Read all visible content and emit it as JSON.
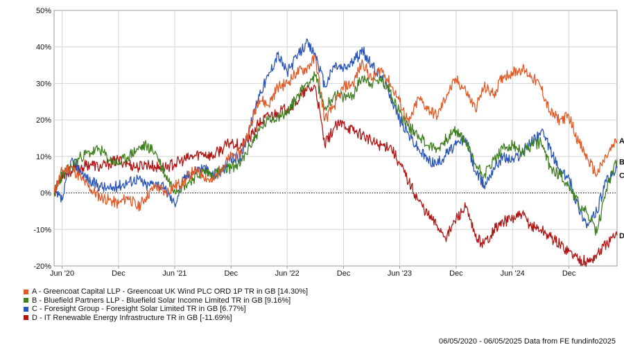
{
  "chart_data": {
    "type": "line",
    "x_ticks": [
      "Jun '20",
      "Dec",
      "Jun '21",
      "Dec",
      "Jun '22",
      "Dec",
      "Jun '23",
      "Dec",
      "Jun '24",
      "Dec"
    ],
    "y_ticks": [
      "50%",
      "40%",
      "30%",
      "20%",
      "10%",
      "0%",
      "-10%",
      "-20%"
    ],
    "ylim": [
      -20,
      50
    ],
    "xlim": [
      "2020-05-06",
      "2025-05-06"
    ],
    "grid": true,
    "zero_line": "dotted",
    "legend_position": "bottom-left",
    "series": [
      {
        "id": "A",
        "name": "A - Greencoat Capital LLP - Greencoat UK Wind PLC ORD 1P TR in GB [14.30%]",
        "color": "#e05a28",
        "points": [
          [
            "2020-05-06",
            0
          ],
          [
            "2020-06-01",
            6
          ],
          [
            "2020-07-01",
            7
          ],
          [
            "2020-08-01",
            4
          ],
          [
            "2020-09-01",
            1
          ],
          [
            "2020-10-01",
            -1
          ],
          [
            "2020-11-01",
            -2
          ],
          [
            "2020-12-01",
            -3
          ],
          [
            "2021-01-01",
            -1
          ],
          [
            "2021-02-01",
            -4
          ],
          [
            "2021-03-01",
            -1
          ],
          [
            "2021-04-01",
            2
          ],
          [
            "2021-05-01",
            0
          ],
          [
            "2021-06-01",
            2
          ],
          [
            "2021-07-01",
            3
          ],
          [
            "2021-08-01",
            6
          ],
          [
            "2021-09-01",
            5
          ],
          [
            "2021-10-01",
            3
          ],
          [
            "2021-11-01",
            7
          ],
          [
            "2021-12-01",
            10
          ],
          [
            "2022-01-01",
            11
          ],
          [
            "2022-02-01",
            18
          ],
          [
            "2022-03-01",
            26
          ],
          [
            "2022-04-01",
            24
          ],
          [
            "2022-05-01",
            29
          ],
          [
            "2022-06-01",
            30
          ],
          [
            "2022-07-01",
            33
          ],
          [
            "2022-08-01",
            34
          ],
          [
            "2022-09-01",
            37
          ],
          [
            "2022-10-01",
            20
          ],
          [
            "2022-11-01",
            24
          ],
          [
            "2022-12-01",
            29
          ],
          [
            "2023-01-01",
            30
          ],
          [
            "2023-02-01",
            36
          ],
          [
            "2023-03-01",
            31
          ],
          [
            "2023-04-01",
            34
          ],
          [
            "2023-05-01",
            30
          ],
          [
            "2023-06-01",
            25
          ],
          [
            "2023-07-01",
            19
          ],
          [
            "2023-08-01",
            26
          ],
          [
            "2023-09-01",
            23
          ],
          [
            "2023-10-01",
            21
          ],
          [
            "2023-11-01",
            27
          ],
          [
            "2023-12-01",
            31
          ],
          [
            "2024-01-01",
            28
          ],
          [
            "2024-02-01",
            23
          ],
          [
            "2024-03-01",
            29
          ],
          [
            "2024-04-01",
            27
          ],
          [
            "2024-05-01",
            32
          ],
          [
            "2024-06-01",
            33
          ],
          [
            "2024-07-01",
            34
          ],
          [
            "2024-08-01",
            32
          ],
          [
            "2024-09-01",
            29
          ],
          [
            "2024-10-01",
            22
          ],
          [
            "2024-11-01",
            20
          ],
          [
            "2024-12-01",
            21
          ],
          [
            "2025-01-01",
            14
          ],
          [
            "2025-02-01",
            9
          ],
          [
            "2025-03-01",
            5
          ],
          [
            "2025-04-01",
            10
          ],
          [
            "2025-05-06",
            14.3
          ]
        ]
      },
      {
        "id": "B",
        "name": "B - Bluefield Partners LLP - Bluefield Solar Income Limited TR in GB [9.16%]",
        "color": "#3f7f1f",
        "points": [
          [
            "2020-05-06",
            0
          ],
          [
            "2020-06-01",
            5
          ],
          [
            "2020-07-01",
            7
          ],
          [
            "2020-08-01",
            10
          ],
          [
            "2020-09-01",
            11
          ],
          [
            "2020-10-01",
            12
          ],
          [
            "2020-11-01",
            9
          ],
          [
            "2020-12-01",
            8
          ],
          [
            "2021-01-01",
            10
          ],
          [
            "2021-02-01",
            12
          ],
          [
            "2021-03-01",
            13
          ],
          [
            "2021-04-01",
            11
          ],
          [
            "2021-05-01",
            5
          ],
          [
            "2021-06-01",
            1
          ],
          [
            "2021-07-01",
            2
          ],
          [
            "2021-08-01",
            4
          ],
          [
            "2021-09-01",
            6
          ],
          [
            "2021-10-01",
            5
          ],
          [
            "2021-11-01",
            6
          ],
          [
            "2021-12-01",
            7
          ],
          [
            "2022-01-01",
            8
          ],
          [
            "2022-02-01",
            13
          ],
          [
            "2022-03-01",
            17
          ],
          [
            "2022-04-01",
            20
          ],
          [
            "2022-05-01",
            21
          ],
          [
            "2022-06-01",
            22
          ],
          [
            "2022-07-01",
            26
          ],
          [
            "2022-08-01",
            30
          ],
          [
            "2022-09-01",
            32
          ],
          [
            "2022-10-01",
            23
          ],
          [
            "2022-11-01",
            27
          ],
          [
            "2022-12-01",
            26
          ],
          [
            "2023-01-01",
            27
          ],
          [
            "2023-02-01",
            32
          ],
          [
            "2023-03-01",
            30
          ],
          [
            "2023-04-01",
            31
          ],
          [
            "2023-05-01",
            28
          ],
          [
            "2023-06-01",
            22
          ],
          [
            "2023-07-01",
            18
          ],
          [
            "2023-08-01",
            16
          ],
          [
            "2023-09-01",
            13
          ],
          [
            "2023-10-01",
            12
          ],
          [
            "2023-11-01",
            15
          ],
          [
            "2023-12-01",
            17
          ],
          [
            "2024-01-01",
            14
          ],
          [
            "2024-02-01",
            8
          ],
          [
            "2024-03-01",
            5
          ],
          [
            "2024-04-01",
            9
          ],
          [
            "2024-05-01",
            12
          ],
          [
            "2024-06-01",
            13
          ],
          [
            "2024-07-01",
            11
          ],
          [
            "2024-08-01",
            13
          ],
          [
            "2024-09-01",
            14
          ],
          [
            "2024-10-01",
            7
          ],
          [
            "2024-11-01",
            5
          ],
          [
            "2024-12-01",
            2
          ],
          [
            "2025-01-01",
            -3
          ],
          [
            "2025-02-01",
            -6
          ],
          [
            "2025-03-01",
            -11
          ],
          [
            "2025-04-01",
            1
          ],
          [
            "2025-05-06",
            9.16
          ]
        ]
      },
      {
        "id": "C",
        "name": "C - Foresight Group - Foresight Solar Limited TR in GB [6.77%]",
        "color": "#2a55b8",
        "points": [
          [
            "2020-05-06",
            0
          ],
          [
            "2020-06-01",
            -2
          ],
          [
            "2020-07-01",
            9
          ],
          [
            "2020-08-01",
            6
          ],
          [
            "2020-09-01",
            3
          ],
          [
            "2020-10-01",
            2
          ],
          [
            "2020-11-01",
            1
          ],
          [
            "2020-12-01",
            2
          ],
          [
            "2021-01-01",
            3
          ],
          [
            "2021-02-01",
            4
          ],
          [
            "2021-03-01",
            2
          ],
          [
            "2021-04-01",
            3
          ],
          [
            "2021-05-01",
            1
          ],
          [
            "2021-06-01",
            -3
          ],
          [
            "2021-07-01",
            4
          ],
          [
            "2021-08-01",
            6
          ],
          [
            "2021-09-01",
            7
          ],
          [
            "2021-10-01",
            5
          ],
          [
            "2021-11-01",
            6
          ],
          [
            "2021-12-01",
            9
          ],
          [
            "2022-01-01",
            10
          ],
          [
            "2022-02-01",
            18
          ],
          [
            "2022-03-01",
            27
          ],
          [
            "2022-04-01",
            32
          ],
          [
            "2022-05-01",
            38
          ],
          [
            "2022-06-01",
            33
          ],
          [
            "2022-07-01",
            37
          ],
          [
            "2022-08-01",
            41
          ],
          [
            "2022-09-01",
            38
          ],
          [
            "2022-10-01",
            29
          ],
          [
            "2022-11-01",
            35
          ],
          [
            "2022-12-01",
            34
          ],
          [
            "2023-01-01",
            36
          ],
          [
            "2023-02-01",
            39
          ],
          [
            "2023-03-01",
            35
          ],
          [
            "2023-04-01",
            32
          ],
          [
            "2023-05-01",
            27
          ],
          [
            "2023-06-01",
            20
          ],
          [
            "2023-07-01",
            16
          ],
          [
            "2023-08-01",
            12
          ],
          [
            "2023-09-01",
            9
          ],
          [
            "2023-10-01",
            8
          ],
          [
            "2023-11-01",
            11
          ],
          [
            "2023-12-01",
            13
          ],
          [
            "2024-01-01",
            15
          ],
          [
            "2024-02-01",
            6
          ],
          [
            "2024-03-01",
            2
          ],
          [
            "2024-04-01",
            7
          ],
          [
            "2024-05-01",
            10
          ],
          [
            "2024-06-01",
            9
          ],
          [
            "2024-07-01",
            11
          ],
          [
            "2024-08-01",
            14
          ],
          [
            "2024-09-01",
            17
          ],
          [
            "2024-10-01",
            12
          ],
          [
            "2024-11-01",
            6
          ],
          [
            "2024-12-01",
            4
          ],
          [
            "2025-01-01",
            -4
          ],
          [
            "2025-02-01",
            -9
          ],
          [
            "2025-03-01",
            -5
          ],
          [
            "2025-04-01",
            3
          ],
          [
            "2025-05-06",
            6.77
          ]
        ]
      },
      {
        "id": "D",
        "name": "D - IT Renewable Energy Infrastructure TR in GB [-11.69%]",
        "color": "#b01515",
        "points": [
          [
            "2020-05-06",
            0
          ],
          [
            "2020-06-01",
            5
          ],
          [
            "2020-07-01",
            6
          ],
          [
            "2020-08-01",
            7
          ],
          [
            "2020-09-01",
            8
          ],
          [
            "2020-10-01",
            7
          ],
          [
            "2020-11-01",
            8
          ],
          [
            "2020-12-01",
            9
          ],
          [
            "2021-01-01",
            8
          ],
          [
            "2021-02-01",
            7
          ],
          [
            "2021-03-01",
            8
          ],
          [
            "2021-04-01",
            7
          ],
          [
            "2021-05-01",
            7
          ],
          [
            "2021-06-01",
            8
          ],
          [
            "2021-07-01",
            9
          ],
          [
            "2021-08-01",
            10
          ],
          [
            "2021-09-01",
            11
          ],
          [
            "2021-10-01",
            10
          ],
          [
            "2021-11-01",
            12
          ],
          [
            "2021-12-01",
            14
          ],
          [
            "2022-01-01",
            13
          ],
          [
            "2022-02-01",
            15
          ],
          [
            "2022-03-01",
            19
          ],
          [
            "2022-04-01",
            21
          ],
          [
            "2022-05-01",
            22
          ],
          [
            "2022-06-01",
            23
          ],
          [
            "2022-07-01",
            25
          ],
          [
            "2022-08-01",
            28
          ],
          [
            "2022-09-01",
            29
          ],
          [
            "2022-10-01",
            13
          ],
          [
            "2022-11-01",
            18
          ],
          [
            "2022-12-01",
            19
          ],
          [
            "2023-01-01",
            17
          ],
          [
            "2023-02-01",
            16
          ],
          [
            "2023-03-01",
            14
          ],
          [
            "2023-04-01",
            13
          ],
          [
            "2023-05-01",
            13
          ],
          [
            "2023-06-01",
            8
          ],
          [
            "2023-07-01",
            3
          ],
          [
            "2023-08-01",
            -2
          ],
          [
            "2023-09-01",
            -6
          ],
          [
            "2023-10-01",
            -9
          ],
          [
            "2023-11-01",
            -12
          ],
          [
            "2023-12-01",
            -7
          ],
          [
            "2024-01-01",
            -4
          ],
          [
            "2024-02-01",
            -12
          ],
          [
            "2024-03-01",
            -14
          ],
          [
            "2024-04-01",
            -10
          ],
          [
            "2024-05-01",
            -8
          ],
          [
            "2024-06-01",
            -7
          ],
          [
            "2024-07-01",
            -6
          ],
          [
            "2024-08-01",
            -9
          ],
          [
            "2024-09-01",
            -10
          ],
          [
            "2024-10-01",
            -12
          ],
          [
            "2024-11-01",
            -14
          ],
          [
            "2024-12-01",
            -16
          ],
          [
            "2025-01-01",
            -18
          ],
          [
            "2025-02-01",
            -19
          ],
          [
            "2025-03-01",
            -17
          ],
          [
            "2025-04-01",
            -14
          ],
          [
            "2025-05-06",
            -11.69
          ]
        ]
      }
    ]
  },
  "footer": {
    "text": "06/05/2020 - 06/05/2025 Data from FE fundinfo2025"
  }
}
